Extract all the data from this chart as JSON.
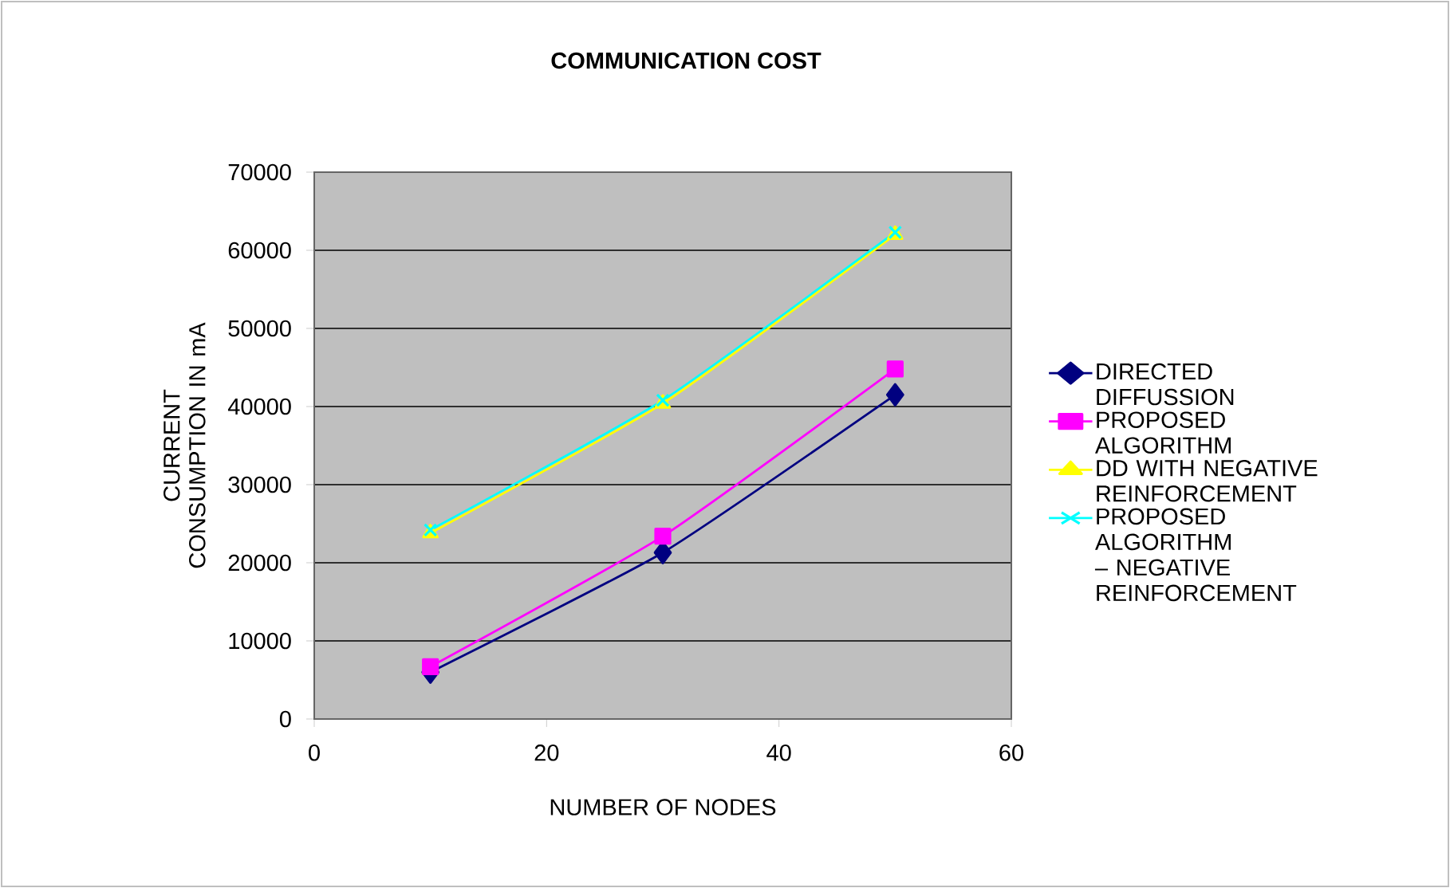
{
  "chart_data": {
    "type": "line",
    "title": "COMMUNICATION COST",
    "xlabel": "NUMBER OF NODES",
    "ylabel": "CURRENT CONSUMPTION IN mA",
    "x": [
      10,
      30,
      50
    ],
    "xlim": [
      0,
      60
    ],
    "xticks": [
      0,
      20,
      40,
      60
    ],
    "ylim": [
      0,
      70000
    ],
    "yticks": [
      0,
      10000,
      20000,
      30000,
      40000,
      50000,
      60000,
      70000
    ],
    "grid": "y",
    "legend": "right",
    "series": [
      {
        "name": "DIRECTED DIFFUSSION",
        "color": "#000080",
        "marker": "diamond",
        "values": [
          6000,
          21300,
          41500
        ]
      },
      {
        "name": "PROPOSED ALGORITHM",
        "color": "#ff00ff",
        "marker": "square",
        "values": [
          6700,
          23400,
          44800
        ]
      },
      {
        "name": "DD WITH NEGATIVE REINFORCEMENT",
        "color": "#ffff00",
        "marker": "triangle",
        "values": [
          23800,
          40400,
          62000
        ]
      },
      {
        "name": "PROPOSED ALGORITHM – NEGATIVE REINFORCEMENT",
        "color": "#00ffff",
        "marker": "cross",
        "values": [
          24200,
          40800,
          62300
        ]
      }
    ]
  }
}
